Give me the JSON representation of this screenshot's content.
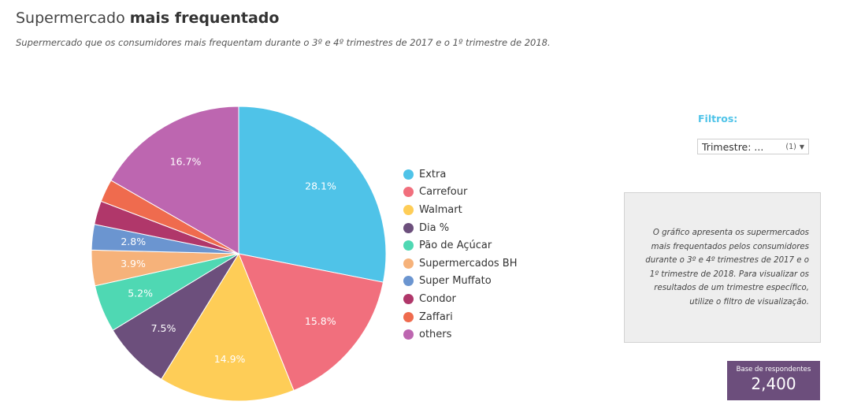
{
  "header": {
    "title_light": "Supermercado",
    "title_bold": "mais frequentado",
    "subtitle": "Supermercado que os consumidores mais frequentam durante o 3º e 4º trimestres de 2017 e o 1º trimestre de 2018."
  },
  "chart_data": {
    "type": "pie",
    "title": "Supermercado mais frequentado",
    "legend_position": "right",
    "slices": [
      {
        "name": "Extra",
        "value": 28.1,
        "label": "28.1%",
        "color": "#4fc3e8"
      },
      {
        "name": "Carrefour",
        "value": 15.8,
        "label": "15.8%",
        "color": "#f16f7d"
      },
      {
        "name": "Walmart",
        "value": 14.9,
        "label": "14.9%",
        "color": "#fecd57"
      },
      {
        "name": "Dia %",
        "value": 7.5,
        "label": "7.5%",
        "color": "#6c4f7c"
      },
      {
        "name": "Pão de Açúcar",
        "value": 5.2,
        "label": "5.2%",
        "color": "#4fd8b3"
      },
      {
        "name": "Supermercados BH",
        "value": 3.9,
        "label": "3.9%",
        "color": "#f6b27a"
      },
      {
        "name": "Super Muffato",
        "value": 2.8,
        "label": "2.8%",
        "color": "#6b95d0"
      },
      {
        "name": "Condor",
        "value": 2.6,
        "label": "",
        "color": "#b0376a"
      },
      {
        "name": "Zaffari",
        "value": 2.5,
        "label": "",
        "color": "#ef6b4e"
      },
      {
        "name": "others",
        "value": 16.7,
        "label": "16.7%",
        "color": "#bd66b0"
      }
    ]
  },
  "filters": {
    "label": "Filtros:",
    "select_value": "Trimestre: ...",
    "select_count": "(1)"
  },
  "info": {
    "text": "O gráfico apresenta os supermercados mais frequentados pelos consumidores durante o 3º e 4º trimestres de 2017 e o 1º trimestre de 2018. Para visualizar os resultados de um trimestre específico, utilize o filtro de visualização."
  },
  "base": {
    "label": "Base de respondentes",
    "value": "2,400"
  }
}
